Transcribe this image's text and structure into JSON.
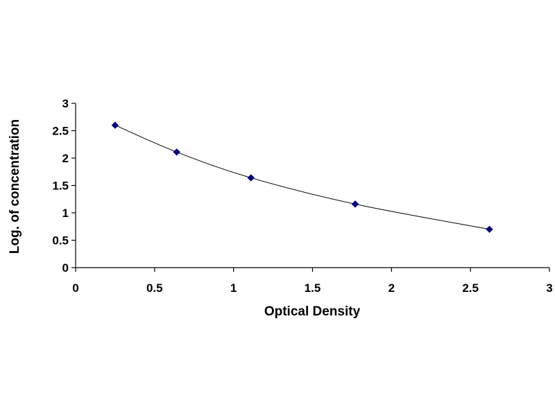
{
  "chart_data": {
    "type": "scatter",
    "title": "",
    "xlabel": "Optical Density",
    "ylabel": "Log. of concentration",
    "xlim": [
      0,
      3
    ],
    "ylim": [
      0,
      3
    ],
    "x_ticks": [
      "0",
      "0.5",
      "1",
      "1.5",
      "2",
      "2.5",
      "3"
    ],
    "y_ticks": [
      "0",
      "0.5",
      "1",
      "1.5",
      "2",
      "2.5",
      "3"
    ],
    "grid": false,
    "legend": "none",
    "trendline": true,
    "series": [
      {
        "marker": "diamond",
        "color": "#000080",
        "x": [
          0.25,
          0.64,
          1.11,
          1.77,
          2.62
        ],
        "y": [
          2.6,
          2.11,
          1.64,
          1.16,
          0.7
        ]
      }
    ]
  }
}
